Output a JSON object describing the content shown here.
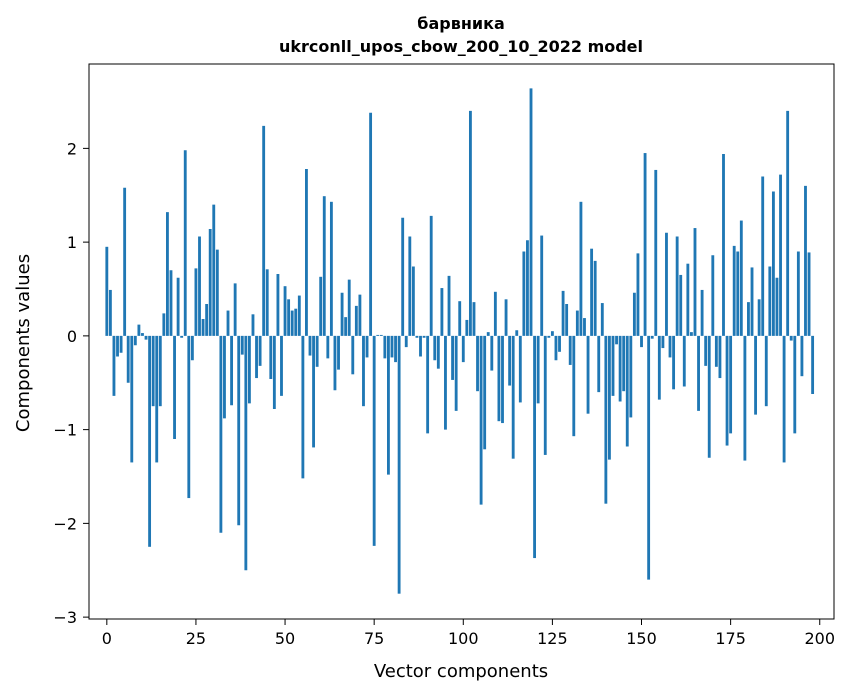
{
  "chart_data": {
    "type": "bar",
    "title_line1": "барвника",
    "title_line2": "ukrconll_upos_cbow_200_10_2022 model",
    "xlabel": "Vector components",
    "ylabel": "Components values",
    "xlim": [
      -5,
      204
    ],
    "ylim": [
      -3.02,
      2.9
    ],
    "xticks": [
      0,
      25,
      50,
      75,
      100,
      125,
      150,
      175,
      200
    ],
    "xtick_labels": [
      "0",
      "25",
      "50",
      "75",
      "100",
      "125",
      "150",
      "175",
      "200"
    ],
    "yticks": [
      -3,
      -2,
      -1,
      0,
      1,
      2
    ],
    "ytick_labels": [
      "−3",
      "−2",
      "−1",
      "0",
      "1",
      "2"
    ],
    "grid": false,
    "bar_color": "#1f77b4",
    "values": [
      0.95,
      0.49,
      -0.64,
      -0.22,
      -0.18,
      1.58,
      -0.5,
      -1.35,
      -0.1,
      0.12,
      0.03,
      -0.04,
      -2.25,
      -0.75,
      -1.35,
      -0.75,
      0.24,
      1.32,
      0.7,
      -1.1,
      0.62,
      -0.02,
      1.98,
      -1.73,
      -0.26,
      0.72,
      1.06,
      0.18,
      0.34,
      1.14,
      1.4,
      0.92,
      -2.1,
      -0.88,
      0.27,
      -0.74,
      0.56,
      -2.02,
      -0.2,
      -2.5,
      -0.72,
      0.23,
      -0.45,
      -0.32,
      2.24,
      0.71,
      -0.46,
      -0.78,
      0.66,
      -0.64,
      0.53,
      0.39,
      0.27,
      0.29,
      0.43,
      -1.52,
      1.78,
      -0.21,
      -1.19,
      -0.33,
      0.63,
      1.49,
      -0.24,
      1.43,
      -0.58,
      -0.36,
      0.46,
      0.2,
      0.6,
      -0.41,
      0.32,
      0.44,
      -0.75,
      -0.23,
      2.38,
      -2.24,
      0.01,
      0.01,
      -0.24,
      -1.48,
      -0.23,
      -0.28,
      -2.75,
      1.26,
      -0.12,
      1.06,
      0.74,
      -0.02,
      -0.22,
      -0.02,
      -1.04,
      1.28,
      -0.26,
      -0.35,
      0.51,
      -1.0,
      0.64,
      -0.47,
      -0.8,
      0.37,
      -0.28,
      0.17,
      2.4,
      0.36,
      -0.59,
      -1.8,
      -1.21,
      0.04,
      -0.37,
      0.47,
      -0.91,
      -0.93,
      0.39,
      -0.53,
      -1.31,
      0.06,
      -0.71,
      0.9,
      1.02,
      2.64,
      -2.37,
      -0.72,
      1.07,
      -1.27,
      -0.02,
      0.05,
      -0.26,
      -0.17,
      0.48,
      0.34,
      -0.31,
      -1.07,
      0.27,
      1.43,
      0.19,
      -0.83,
      0.93,
      0.8,
      -0.6,
      0.35,
      -1.79,
      -1.32,
      -0.64,
      -0.09,
      -0.7,
      -0.59,
      -1.18,
      -0.87,
      0.46,
      0.88,
      -0.12,
      1.95,
      -2.6,
      -0.03,
      1.77,
      -0.68,
      -0.13,
      1.1,
      -0.23,
      -0.57,
      1.06,
      0.65,
      -0.54,
      0.77,
      0.04,
      1.15,
      -0.8,
      0.49,
      -0.32,
      -1.3,
      0.86,
      -0.33,
      -0.45,
      1.94,
      -1.17,
      -1.04,
      0.96,
      0.9,
      1.23,
      -1.33,
      0.36,
      0.73,
      -0.84,
      0.39,
      1.7,
      -0.75,
      0.74,
      1.54,
      0.62,
      1.72,
      -1.35,
      2.4,
      -0.05,
      -1.04,
      0.9,
      -0.43,
      1.6,
      0.89,
      -0.62
    ]
  }
}
